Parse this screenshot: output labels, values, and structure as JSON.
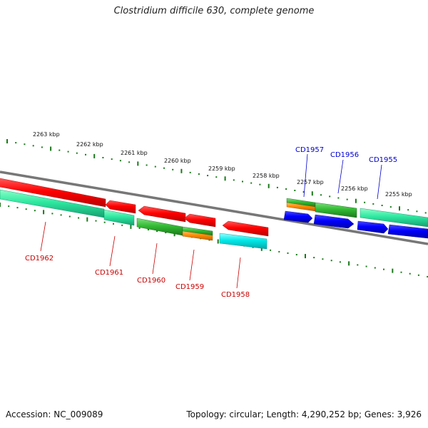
{
  "title": "Clostridium difficile 630, complete genome",
  "footer": {
    "accession": "Accession: NC_009089",
    "topology": "Topology: circular; Length: 4,290,252 bp; Genes: 3,926"
  },
  "colors": {
    "backbone": "#777777",
    "tick": "#1a7a1a",
    "forward_label": "#0000cc",
    "reverse_label": "#cc0000"
  },
  "ruler_labels": [
    "2263 kbp",
    "2262 kbp",
    "2261 kbp",
    "2260 kbp",
    "2259 kbp",
    "2258 kbp",
    "2257 kbp",
    "2256 kbp",
    "2255 kbp"
  ],
  "genes_forward": [
    {
      "name": "CD1957",
      "color": "blue"
    },
    {
      "name": "CD1956",
      "color": "blue"
    },
    {
      "name": "CD1955",
      "color": "blue"
    }
  ],
  "genes_reverse": [
    {
      "name": "CD1962",
      "color": "red"
    },
    {
      "name": "CD1961",
      "color": "red"
    },
    {
      "name": "CD1960",
      "color": "red"
    },
    {
      "name": "CD1959",
      "color": "red"
    },
    {
      "name": "CD1958",
      "color": "red"
    }
  ]
}
